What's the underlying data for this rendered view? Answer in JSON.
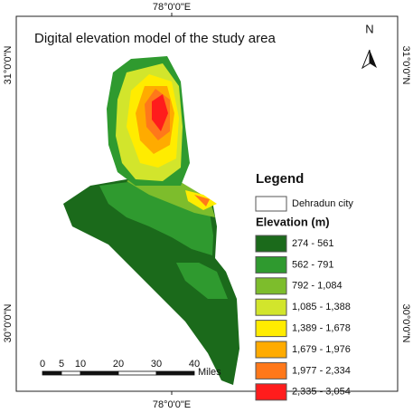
{
  "map": {
    "title": "Digital elevation model of the study area",
    "coords": {
      "top": "78°0'0\"E",
      "bottom": "78°0'0\"E",
      "left": [
        "31°0'0\"N",
        "30°0'0\"N"
      ],
      "right": [
        "31°0'0\"N",
        "30°0'0\"N"
      ]
    },
    "north": "N",
    "legend": {
      "title": "Legend",
      "city": "Dehradun city",
      "elevation_title": "Elevation (m)",
      "classes": [
        {
          "label": "274 - 561",
          "color": "#1b6a1b"
        },
        {
          "label": "562 - 791",
          "color": "#2f9a2f"
        },
        {
          "label": "792 - 1,084",
          "color": "#7dbd2c"
        },
        {
          "label": "1,085 - 1,388",
          "color": "#d2e52c"
        },
        {
          "label": "1,389 - 1,678",
          "color": "#ffec00"
        },
        {
          "label": "1,679 - 1,976",
          "color": "#ffab00"
        },
        {
          "label": "1,977 - 2,334",
          "color": "#ff781a"
        },
        {
          "label": "2,335 - 3,054",
          "color": "#ff1c1c"
        }
      ]
    },
    "scale": {
      "ticks": [
        0,
        5,
        10,
        20,
        30,
        40
      ],
      "unit": "Miles"
    }
  }
}
